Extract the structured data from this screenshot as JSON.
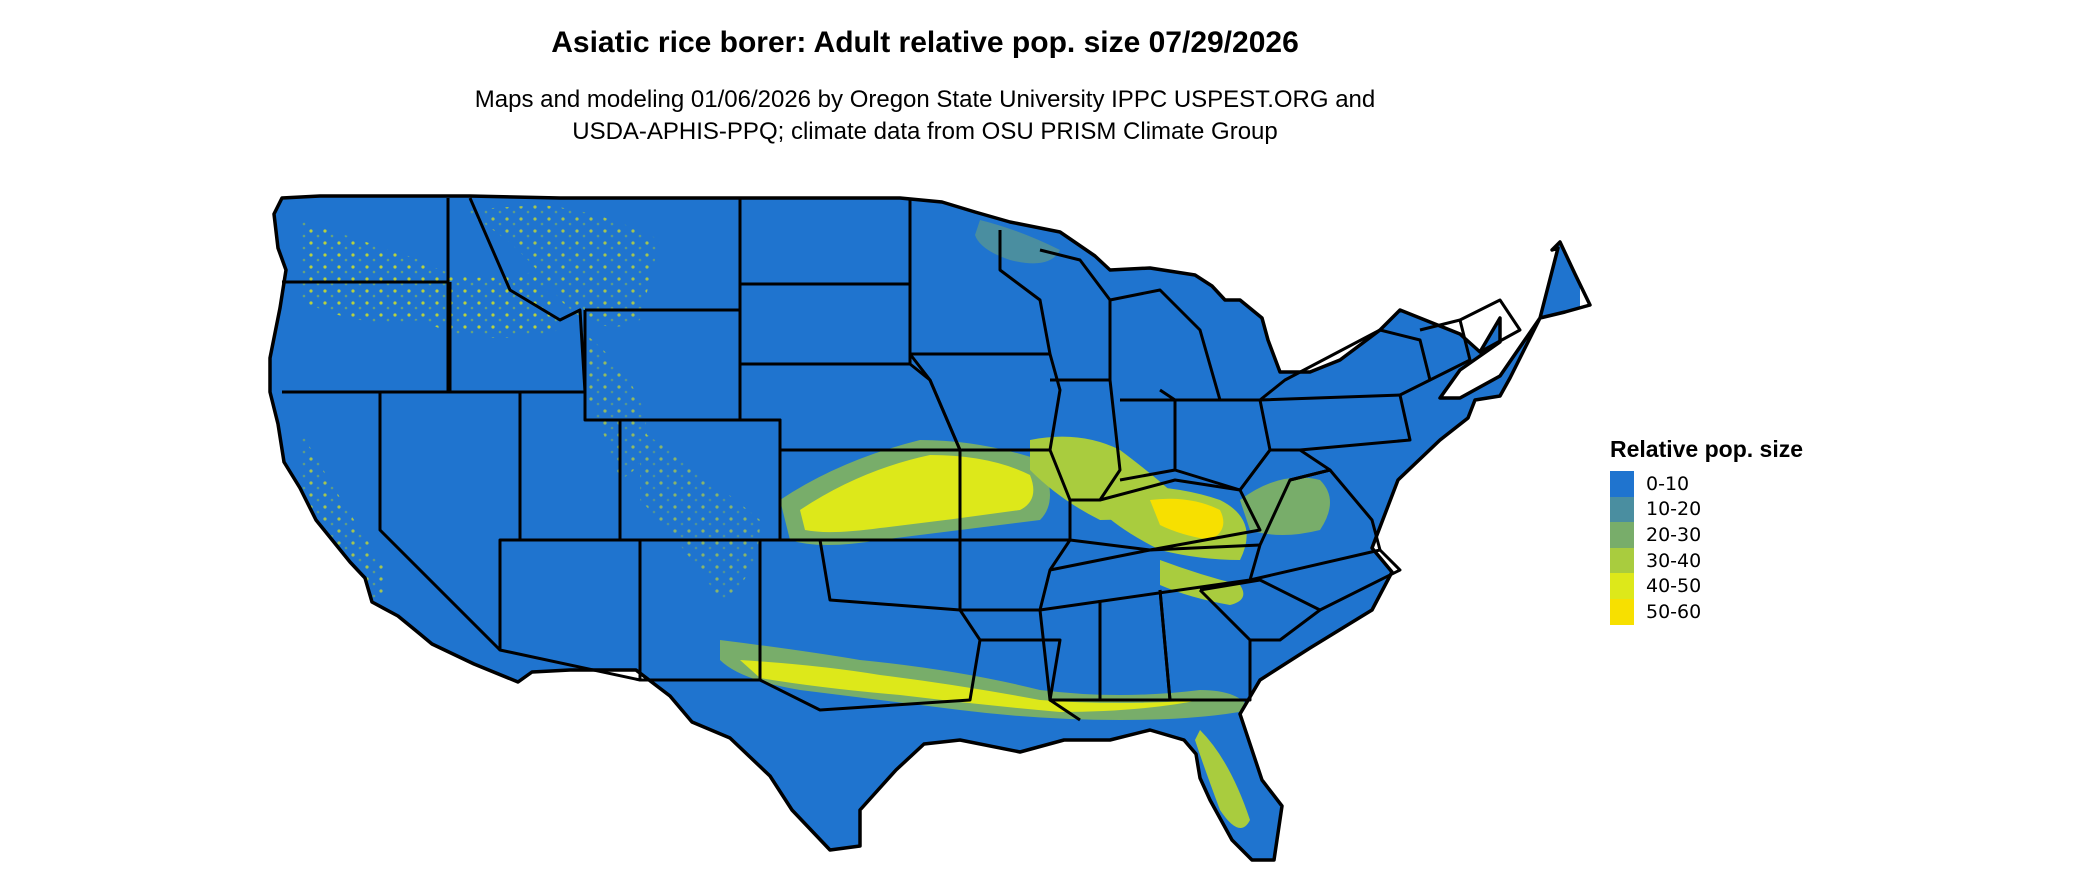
{
  "title": "Asiatic rice borer: Adult relative pop. size 07/29/2026",
  "subtitle_lines": [
    "Maps and modeling 01/06/2026 by Oregon State University IPPC USPEST.ORG and",
    "USDA-APHIS-PPQ; climate data from OSU PRISM Climate Group"
  ],
  "legend": {
    "title": "Relative pop. size",
    "items": [
      {
        "label": "0-10",
        "color": "#1f74cf"
      },
      {
        "label": "10-20",
        "color": "#4a8ea0"
      },
      {
        "label": "20-30",
        "color": "#78ad6a"
      },
      {
        "label": "30-40",
        "color": "#a9cc3e"
      },
      {
        "label": "40-50",
        "color": "#dde81a"
      },
      {
        "label": "50-60",
        "color": "#f7e000"
      }
    ]
  },
  "map": {
    "subject": "contiguous-united-states",
    "base_color": "#1f74cf",
    "border_color": "#000000"
  }
}
